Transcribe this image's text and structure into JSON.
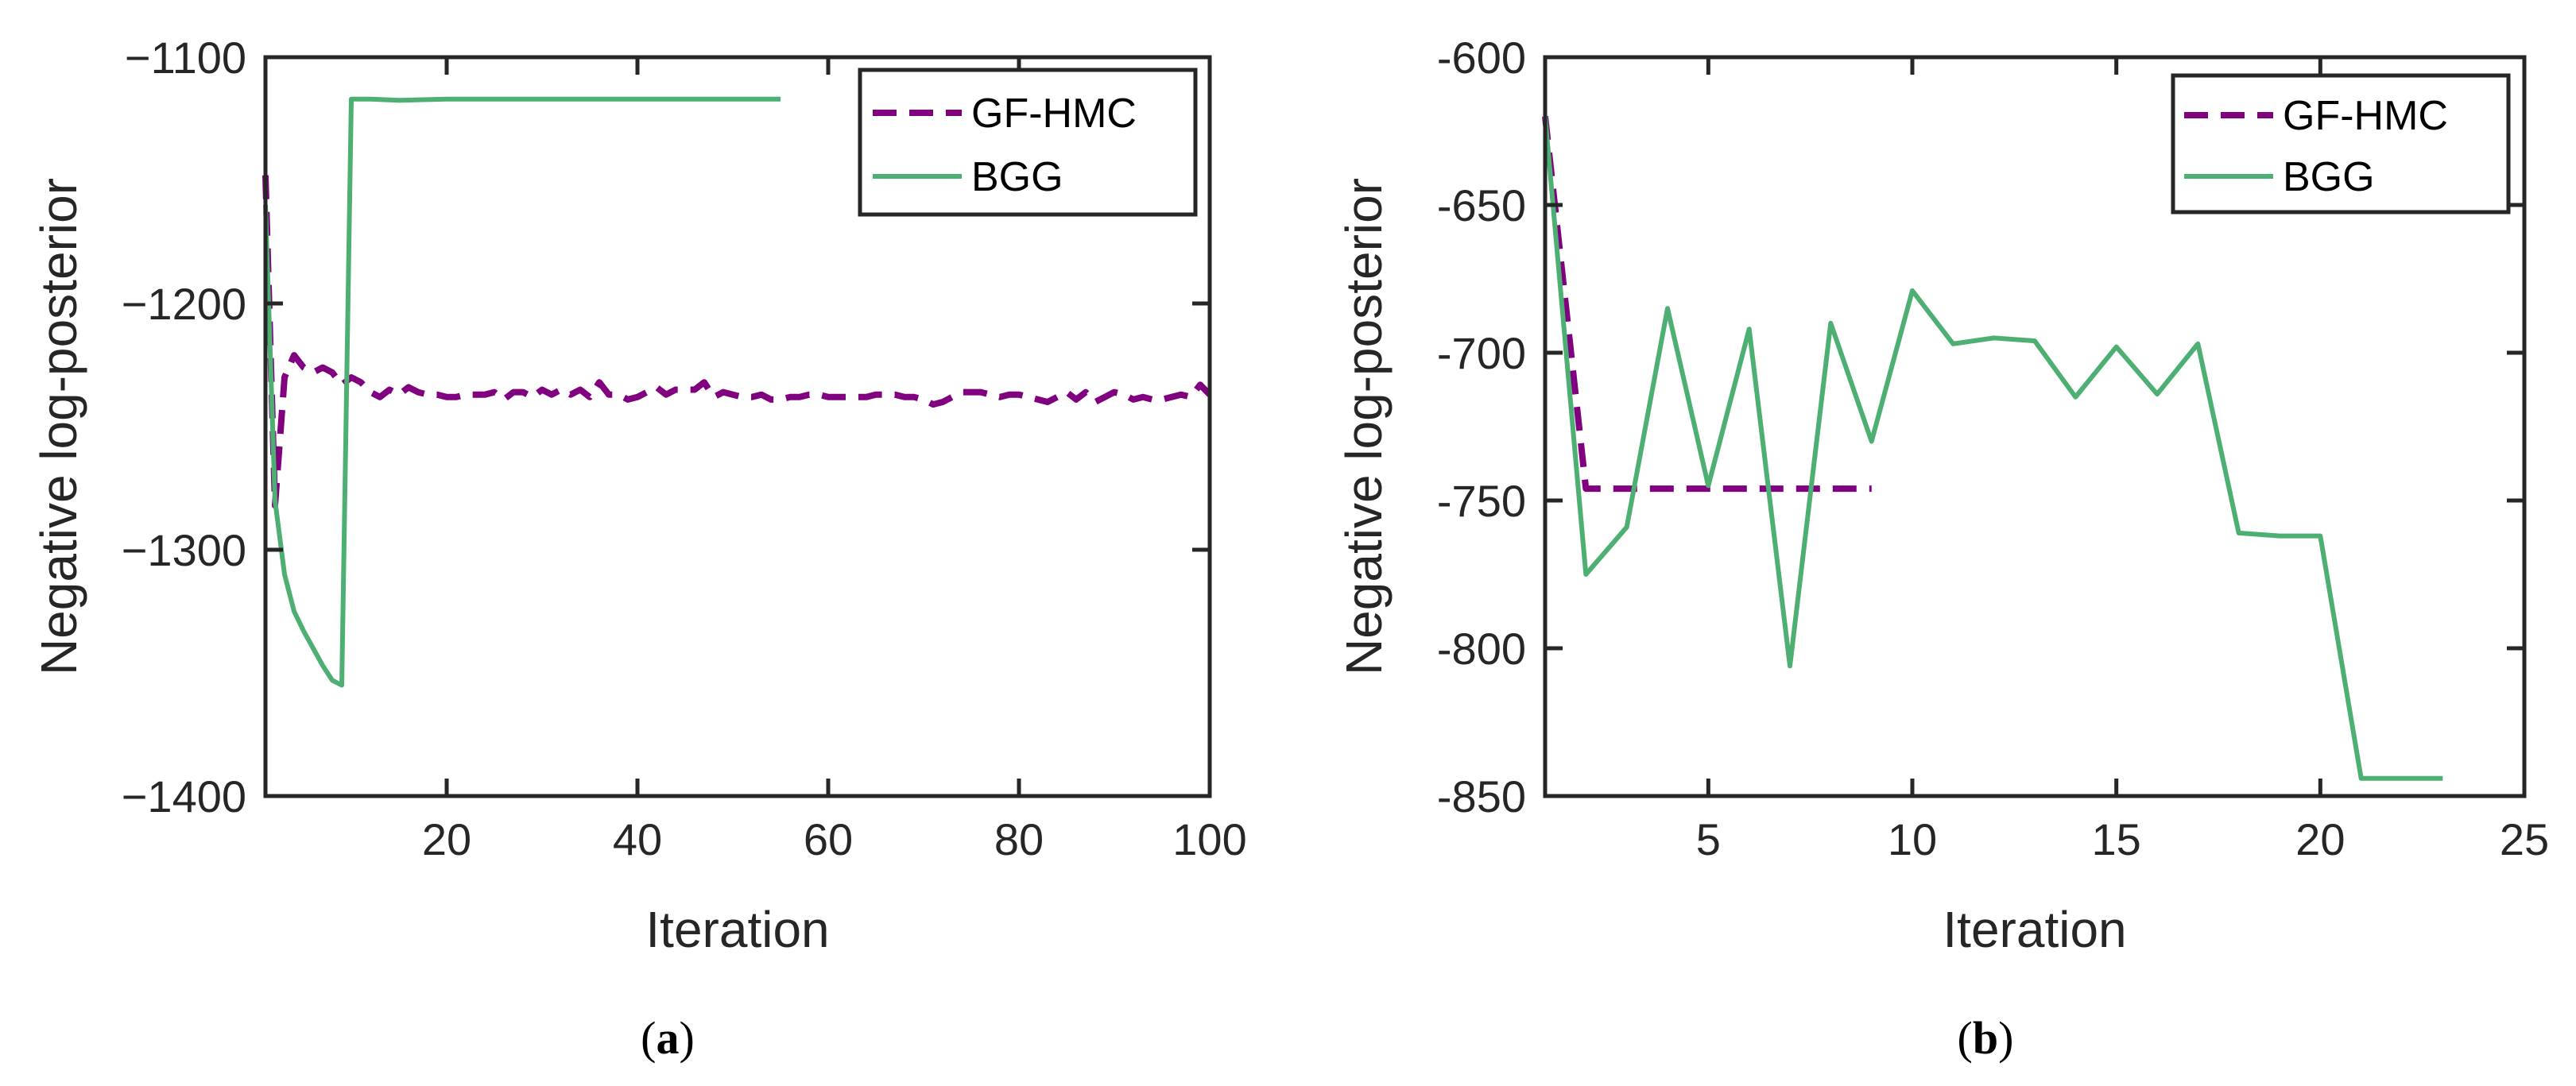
{
  "colors": {
    "gfhmc": "#800080",
    "bgg": "#4DAF72",
    "axis": "#262626",
    "background": "#ffffff"
  },
  "chart_data": [
    {
      "type": "line",
      "caption": "a",
      "xlabel": "Iteration",
      "ylabel": "Negative log-posterior",
      "xlim": [
        1,
        100
      ],
      "ylim": [
        -1400,
        -1100
      ],
      "xticks": [
        20,
        40,
        60,
        80,
        100
      ],
      "yticks": [
        -1100,
        -1200,
        -1300,
        -1400
      ],
      "xtick_labels": [
        "20",
        "40",
        "60",
        "80",
        "100"
      ],
      "ytick_labels": [
        "−1100",
        "−1200",
        "−1300",
        "−1400"
      ],
      "legend": {
        "position": "top-right",
        "entries": [
          "GF-HMC",
          "BGG"
        ]
      },
      "series": [
        {
          "name": "GF-HMC",
          "style": "dashed",
          "color": "#800080",
          "x": [
            1,
            2,
            3,
            4,
            5,
            6,
            7,
            8,
            9,
            10,
            11,
            12,
            13,
            14,
            15,
            16,
            17,
            18,
            19,
            20,
            21,
            22,
            23,
            24,
            25,
            26,
            27,
            28,
            29,
            30,
            31,
            32,
            33,
            34,
            35,
            36,
            37,
            38,
            39,
            40,
            41,
            42,
            43,
            44,
            45,
            46,
            47,
            48,
            49,
            50,
            51,
            52,
            53,
            54,
            55,
            56,
            57,
            58,
            59,
            60,
            61,
            62,
            63,
            64,
            65,
            66,
            67,
            68,
            69,
            70,
            71,
            72,
            73,
            74,
            75,
            76,
            77,
            78,
            79,
            80,
            81,
            82,
            83,
            84,
            85,
            86,
            87,
            88,
            89,
            90,
            91,
            92,
            93,
            94,
            95,
            96,
            97,
            98,
            99,
            100
          ],
          "y": [
            -1148,
            -1282,
            -1230,
            -1221,
            -1226,
            -1228,
            -1226,
            -1228,
            -1233,
            -1230,
            -1232,
            -1236,
            -1238,
            -1235,
            -1237,
            -1234,
            -1236,
            -1237,
            -1237,
            -1238,
            -1238,
            -1237,
            -1237,
            -1237,
            -1236,
            -1239,
            -1236,
            -1236,
            -1238,
            -1235,
            -1237,
            -1235,
            -1237,
            -1235,
            -1238,
            -1232,
            -1237,
            -1237,
            -1239,
            -1238,
            -1236,
            -1234,
            -1237,
            -1235,
            -1235,
            -1235,
            -1232,
            -1238,
            -1236,
            -1237,
            -1238,
            -1238,
            -1237,
            -1239,
            -1239,
            -1238,
            -1238,
            -1237,
            -1237,
            -1238,
            -1238,
            -1238,
            -1238,
            -1238,
            -1237,
            -1237,
            -1237,
            -1238,
            -1238,
            -1239,
            -1241,
            -1240,
            -1238,
            -1236,
            -1236,
            -1236,
            -1237,
            -1238,
            -1237,
            -1237,
            -1238,
            -1239,
            -1240,
            -1238,
            -1236,
            -1239,
            -1236,
            -1240,
            -1238,
            -1236,
            -1237,
            -1239,
            -1238,
            -1239,
            -1239,
            -1238,
            -1237,
            -1238,
            -1233,
            -1237
          ]
        },
        {
          "name": "BGG",
          "style": "solid",
          "color": "#4DAF72",
          "x": [
            1,
            2,
            3,
            4,
            5,
            6,
            7,
            8,
            9,
            10,
            12,
            15,
            20,
            30,
            40,
            55
          ],
          "y": [
            -1160,
            -1280,
            -1310,
            -1325,
            -1333,
            -1340,
            -1347,
            -1353,
            -1355,
            -1117,
            -1117,
            -1117.5,
            -1117,
            -1117,
            -1117,
            -1117
          ]
        }
      ]
    },
    {
      "type": "line",
      "caption": "b",
      "xlabel": "Iteration",
      "ylabel": "Negative log-posterior",
      "xlim": [
        1,
        25
      ],
      "ylim": [
        -850,
        -600
      ],
      "xticks": [
        5,
        10,
        15,
        20,
        25
      ],
      "yticks": [
        -600,
        -650,
        -700,
        -750,
        -800,
        -850
      ],
      "xtick_labels": [
        "5",
        "10",
        "15",
        "20",
        "25"
      ],
      "ytick_labels": [
        "-600",
        "-650",
        "-700",
        "-750",
        "-800",
        "-850"
      ],
      "legend": {
        "position": "top-right",
        "entries": [
          "GF-HMC",
          "BGG"
        ]
      },
      "series": [
        {
          "name": "GF-HMC",
          "style": "dashed",
          "color": "#800080",
          "x": [
            1,
            2,
            3,
            4,
            5,
            6,
            7,
            8,
            9
          ],
          "y": [
            -620,
            -746,
            -746,
            -746,
            -746,
            -746,
            -746,
            -746,
            -746
          ]
        },
        {
          "name": "BGG",
          "style": "solid",
          "color": "#4DAF72",
          "x": [
            1,
            2,
            3,
            4,
            5,
            6,
            7,
            8,
            9,
            10,
            11,
            12,
            13,
            14,
            15,
            16,
            17,
            18,
            19,
            20,
            21,
            22,
            23
          ],
          "y": [
            -620,
            -775,
            -759,
            -685,
            -745,
            -692,
            -806,
            -690,
            -730,
            -679,
            -697,
            -695,
            -696,
            -715,
            -698,
            -714,
            -697,
            -761,
            -762,
            -762,
            -844,
            -844,
            -844
          ]
        }
      ]
    }
  ]
}
